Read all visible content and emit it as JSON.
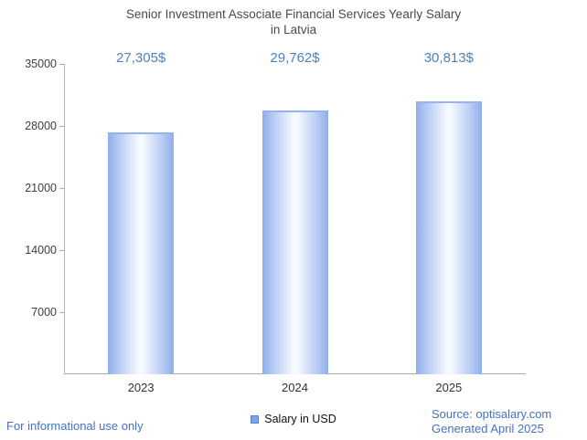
{
  "header": {
    "title_line1": "Senior Investment Associate Financial Services Yearly Salary",
    "title_line2": "in Latvia"
  },
  "chart_data": {
    "type": "bar",
    "title": "Senior Investment Associate Financial Services Yearly Salary in Latvia",
    "categories": [
      "2023",
      "2024",
      "2025"
    ],
    "values": [
      27305,
      29762,
      30813
    ],
    "value_labels": [
      "27,305$",
      "29,762$",
      "30,813$"
    ],
    "series_name": "Salary in USD",
    "xlabel": "",
    "ylabel": "",
    "ylim": [
      0,
      35000
    ],
    "yticks": [
      7000,
      14000,
      21000,
      28000,
      35000
    ],
    "grid": false,
    "legend_position": "bottom",
    "bar_edge_color": "#8fafea",
    "bar_center_color": "#f6f9fe"
  },
  "legend": {
    "label": "Salary in USD"
  },
  "footer": {
    "disclaimer": "For informational use only",
    "source": "Source: optisalary.com",
    "generated": "Generated April 2025"
  },
  "colors": {
    "value_label": "#4e81bd",
    "link": "#4472c4",
    "title": "#4a4a4a",
    "axis": "#a8a8a8"
  }
}
